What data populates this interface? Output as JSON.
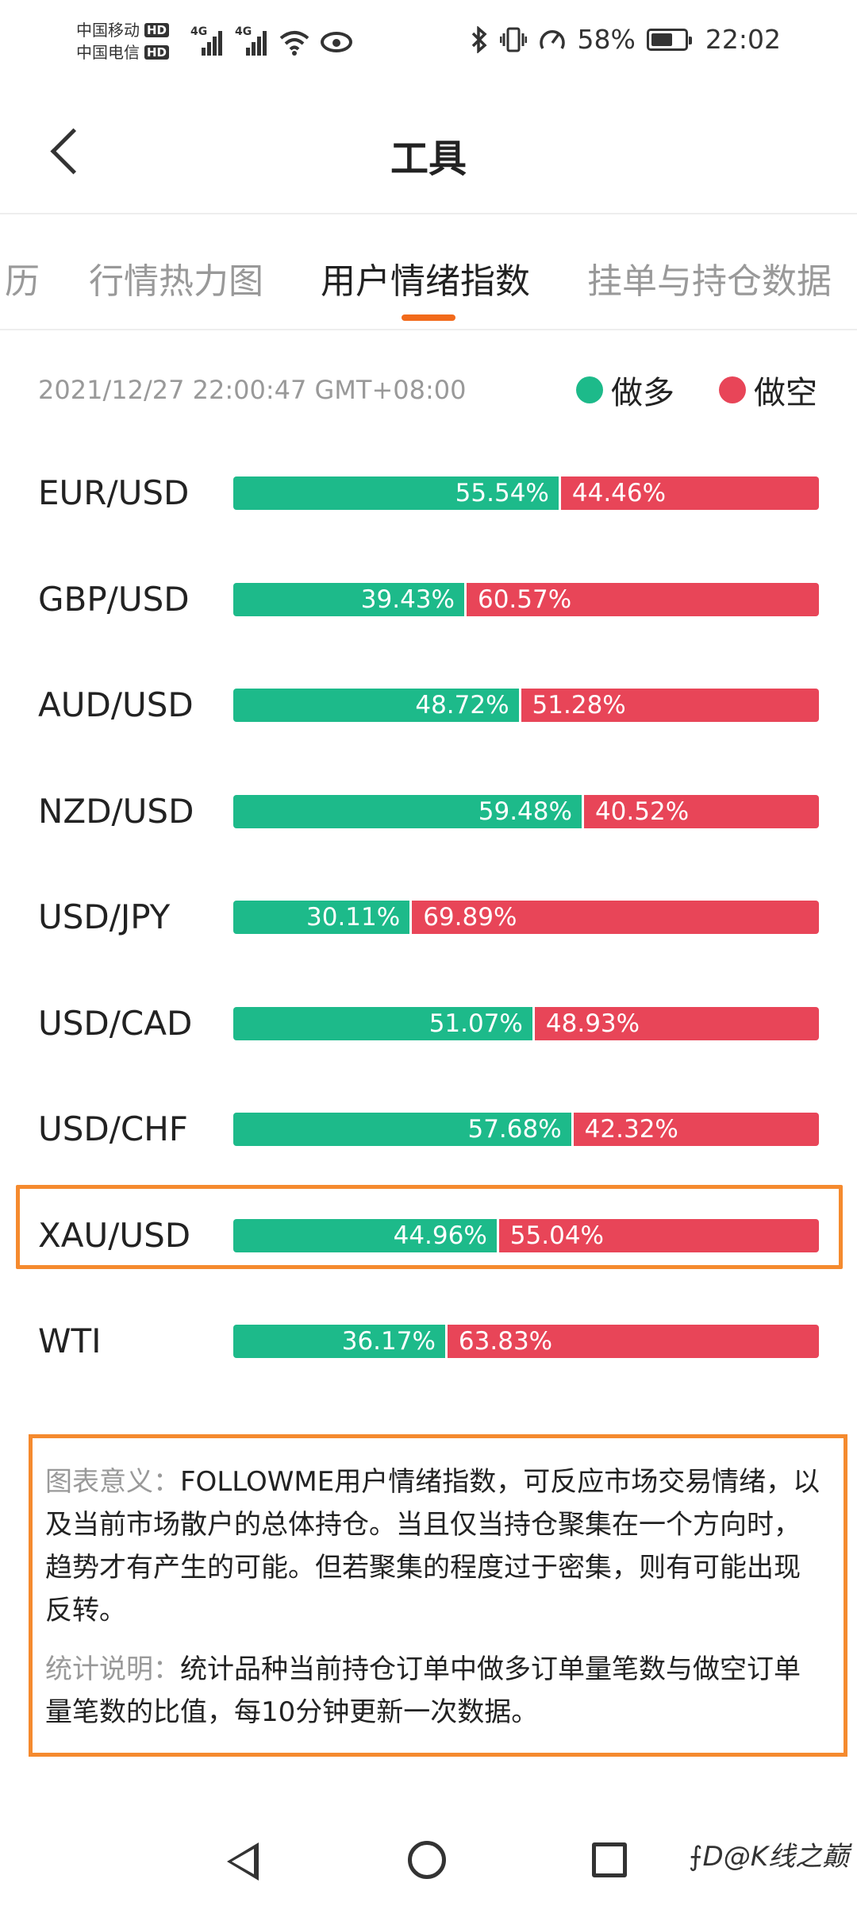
{
  "status_bar": {
    "carrier1": "中国移动",
    "carrier2": "中国电信",
    "hd_badge": "HD",
    "net_type": "4G",
    "battery_percent": "58%",
    "time": "22:02"
  },
  "header": {
    "title": "工具"
  },
  "tabs": [
    {
      "label": "历"
    },
    {
      "label": "行情热力图"
    },
    {
      "label": "用户情绪指数",
      "active": true
    },
    {
      "label": "挂单与持仓数据"
    }
  ],
  "timestamp": "2021/12/27 22:00:47 GMT+08:00",
  "legend": {
    "long_label": "做多",
    "long_color": "#1dba8a",
    "short_label": "做空",
    "short_color": "#e84558"
  },
  "chart_data": {
    "type": "bar",
    "categories": [
      "EUR/USD",
      "GBP/USD",
      "AUD/USD",
      "NZD/USD",
      "USD/JPY",
      "USD/CAD",
      "USD/CHF",
      "XAU/USD",
      "WTI"
    ],
    "series": [
      {
        "name": "做多",
        "values": [
          55.54,
          39.43,
          48.72,
          59.48,
          30.11,
          51.07,
          57.68,
          44.96,
          36.17
        ]
      },
      {
        "name": "做空",
        "values": [
          44.46,
          60.57,
          51.28,
          40.52,
          69.89,
          48.93,
          42.32,
          55.04,
          63.83
        ]
      }
    ],
    "long_labels": [
      "55.54%",
      "39.43%",
      "48.72%",
      "59.48%",
      "30.11%",
      "51.07%",
      "57.68%",
      "44.96%",
      "36.17%"
    ],
    "short_labels": [
      "44.46%",
      "60.57%",
      "51.28%",
      "40.52%",
      "69.89%",
      "48.93%",
      "42.32%",
      "55.04%",
      "63.83%"
    ],
    "highlighted_category": "XAU/USD"
  },
  "info": {
    "chart_meaning_label": "图表意义：",
    "chart_meaning_text": "FOLLOWME用户情绪指数，可反应市场交易情绪，以及当前市场散户的总体持仓。当且仅当持仓聚集在一个方向时，趋势才有产生的可能。但若聚集的程度过于密集，则有可能出现反转。",
    "stat_label": "统计说明：",
    "stat_text": "统计品种当前持仓订单中做多订单量笔数与做空订单量笔数的比值，每10分钟更新一次数据。"
  },
  "watermark": "⨍D@K线之巅"
}
